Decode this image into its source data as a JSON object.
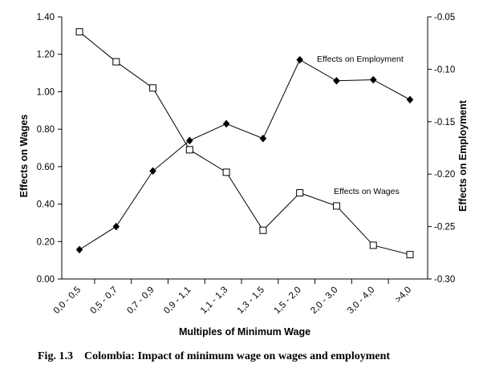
{
  "chart_data": {
    "type": "line",
    "categories": [
      "0,0 - 0,5",
      "0,5 - 0,7",
      "0,7 - 0,9",
      "0,9 - 1,1",
      "1,1 - 1,3",
      "1,3 - 1,5",
      "1,5 - 2,0",
      "2,0 - 3,0",
      "3,0 - 4,0",
      ">4,0"
    ],
    "xlabel": "Multiples of Minimum Wage",
    "ylabel_left": "Effects on Wages",
    "ylabel_right": "Effects on Employment",
    "ylim_left": [
      0,
      1.4
    ],
    "ylim_right": [
      -0.3,
      -0.05
    ],
    "yticks_left": [
      "0.00",
      "0.20",
      "0.40",
      "0.60",
      "0.80",
      "1.00",
      "1.20",
      "1.40"
    ],
    "yticks_right": [
      "-0.30",
      "-0.25",
      "-0.20",
      "-0.15",
      "-0.10",
      "-0.05"
    ],
    "grid": false,
    "series": [
      {
        "name": "Effects on Wages",
        "axis": "left",
        "marker": "open-square",
        "values": [
          1.32,
          1.16,
          1.02,
          0.69,
          0.57,
          0.26,
          0.46,
          0.39,
          0.18,
          0.13
        ]
      },
      {
        "name": "Effects on Employment",
        "axis": "right",
        "marker": "filled-diamond",
        "values": [
          -0.272,
          -0.25,
          -0.197,
          -0.168,
          -0.152,
          -0.166,
          -0.091,
          -0.111,
          -0.11,
          -0.129
        ]
      }
    ]
  },
  "caption": {
    "number": "Fig. 1.3",
    "text": "Colombia: Impact of minimum wage on wages and employment"
  }
}
